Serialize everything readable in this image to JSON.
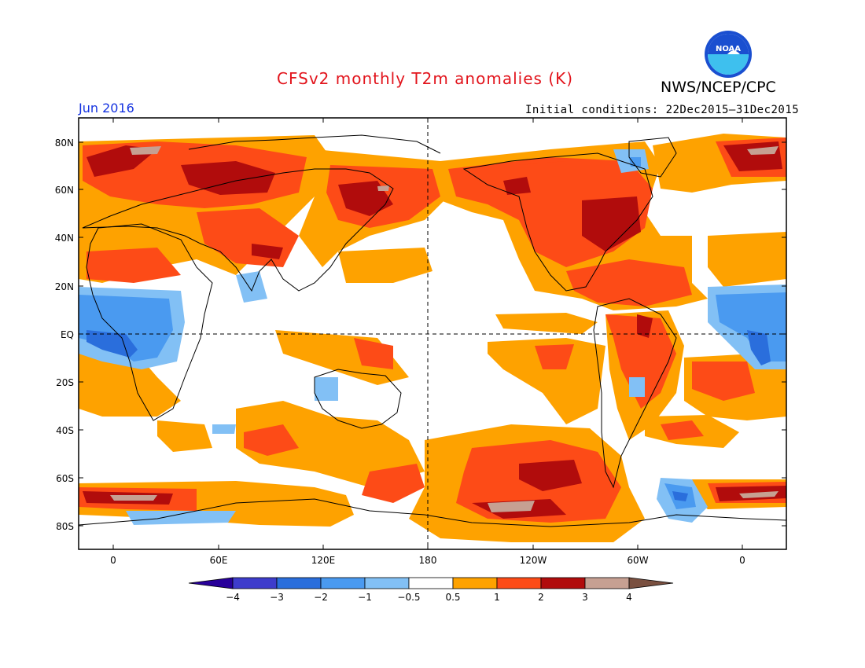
{
  "header": {
    "title": "CFSv2 monthly T2m anomalies (K)",
    "org": "NWS/NCEP/CPC",
    "logo_text": "NOAA",
    "month": "Jun 2016",
    "initial_conditions": "Initial conditions: 22Dec2015–31Dec2015"
  },
  "axes": {
    "lat_labels": [
      "80N",
      "60N",
      "40N",
      "20N",
      "EQ",
      "20S",
      "40S",
      "60S",
      "80S"
    ],
    "lon_labels": [
      "0",
      "60E",
      "120E",
      "180",
      "120W",
      "60W",
      "0"
    ]
  },
  "colorbar": {
    "labels": [
      "−4",
      "−3",
      "−2",
      "−1",
      "−0.5",
      "0.5",
      "1",
      "2",
      "3",
      "4"
    ],
    "colors": [
      "#28009a",
      "#3e3ccc",
      "#2a6edc",
      "#4a9af0",
      "#82c0f5",
      "#ffffff",
      "#fea200",
      "#fd4b17",
      "#b10c0c",
      "#c6a092",
      "#7a5040"
    ]
  },
  "map": {
    "warm_colors": {
      "0.5-1": "#fea200",
      "1-2": "#fd4b17",
      "2-3": "#b10c0c",
      "3-4": "#c6a092"
    },
    "cool_colors": {
      "-1--0.5": "#82c0f5",
      "-2--1": "#4a9af0",
      "-3--2": "#2a6edc"
    }
  }
}
